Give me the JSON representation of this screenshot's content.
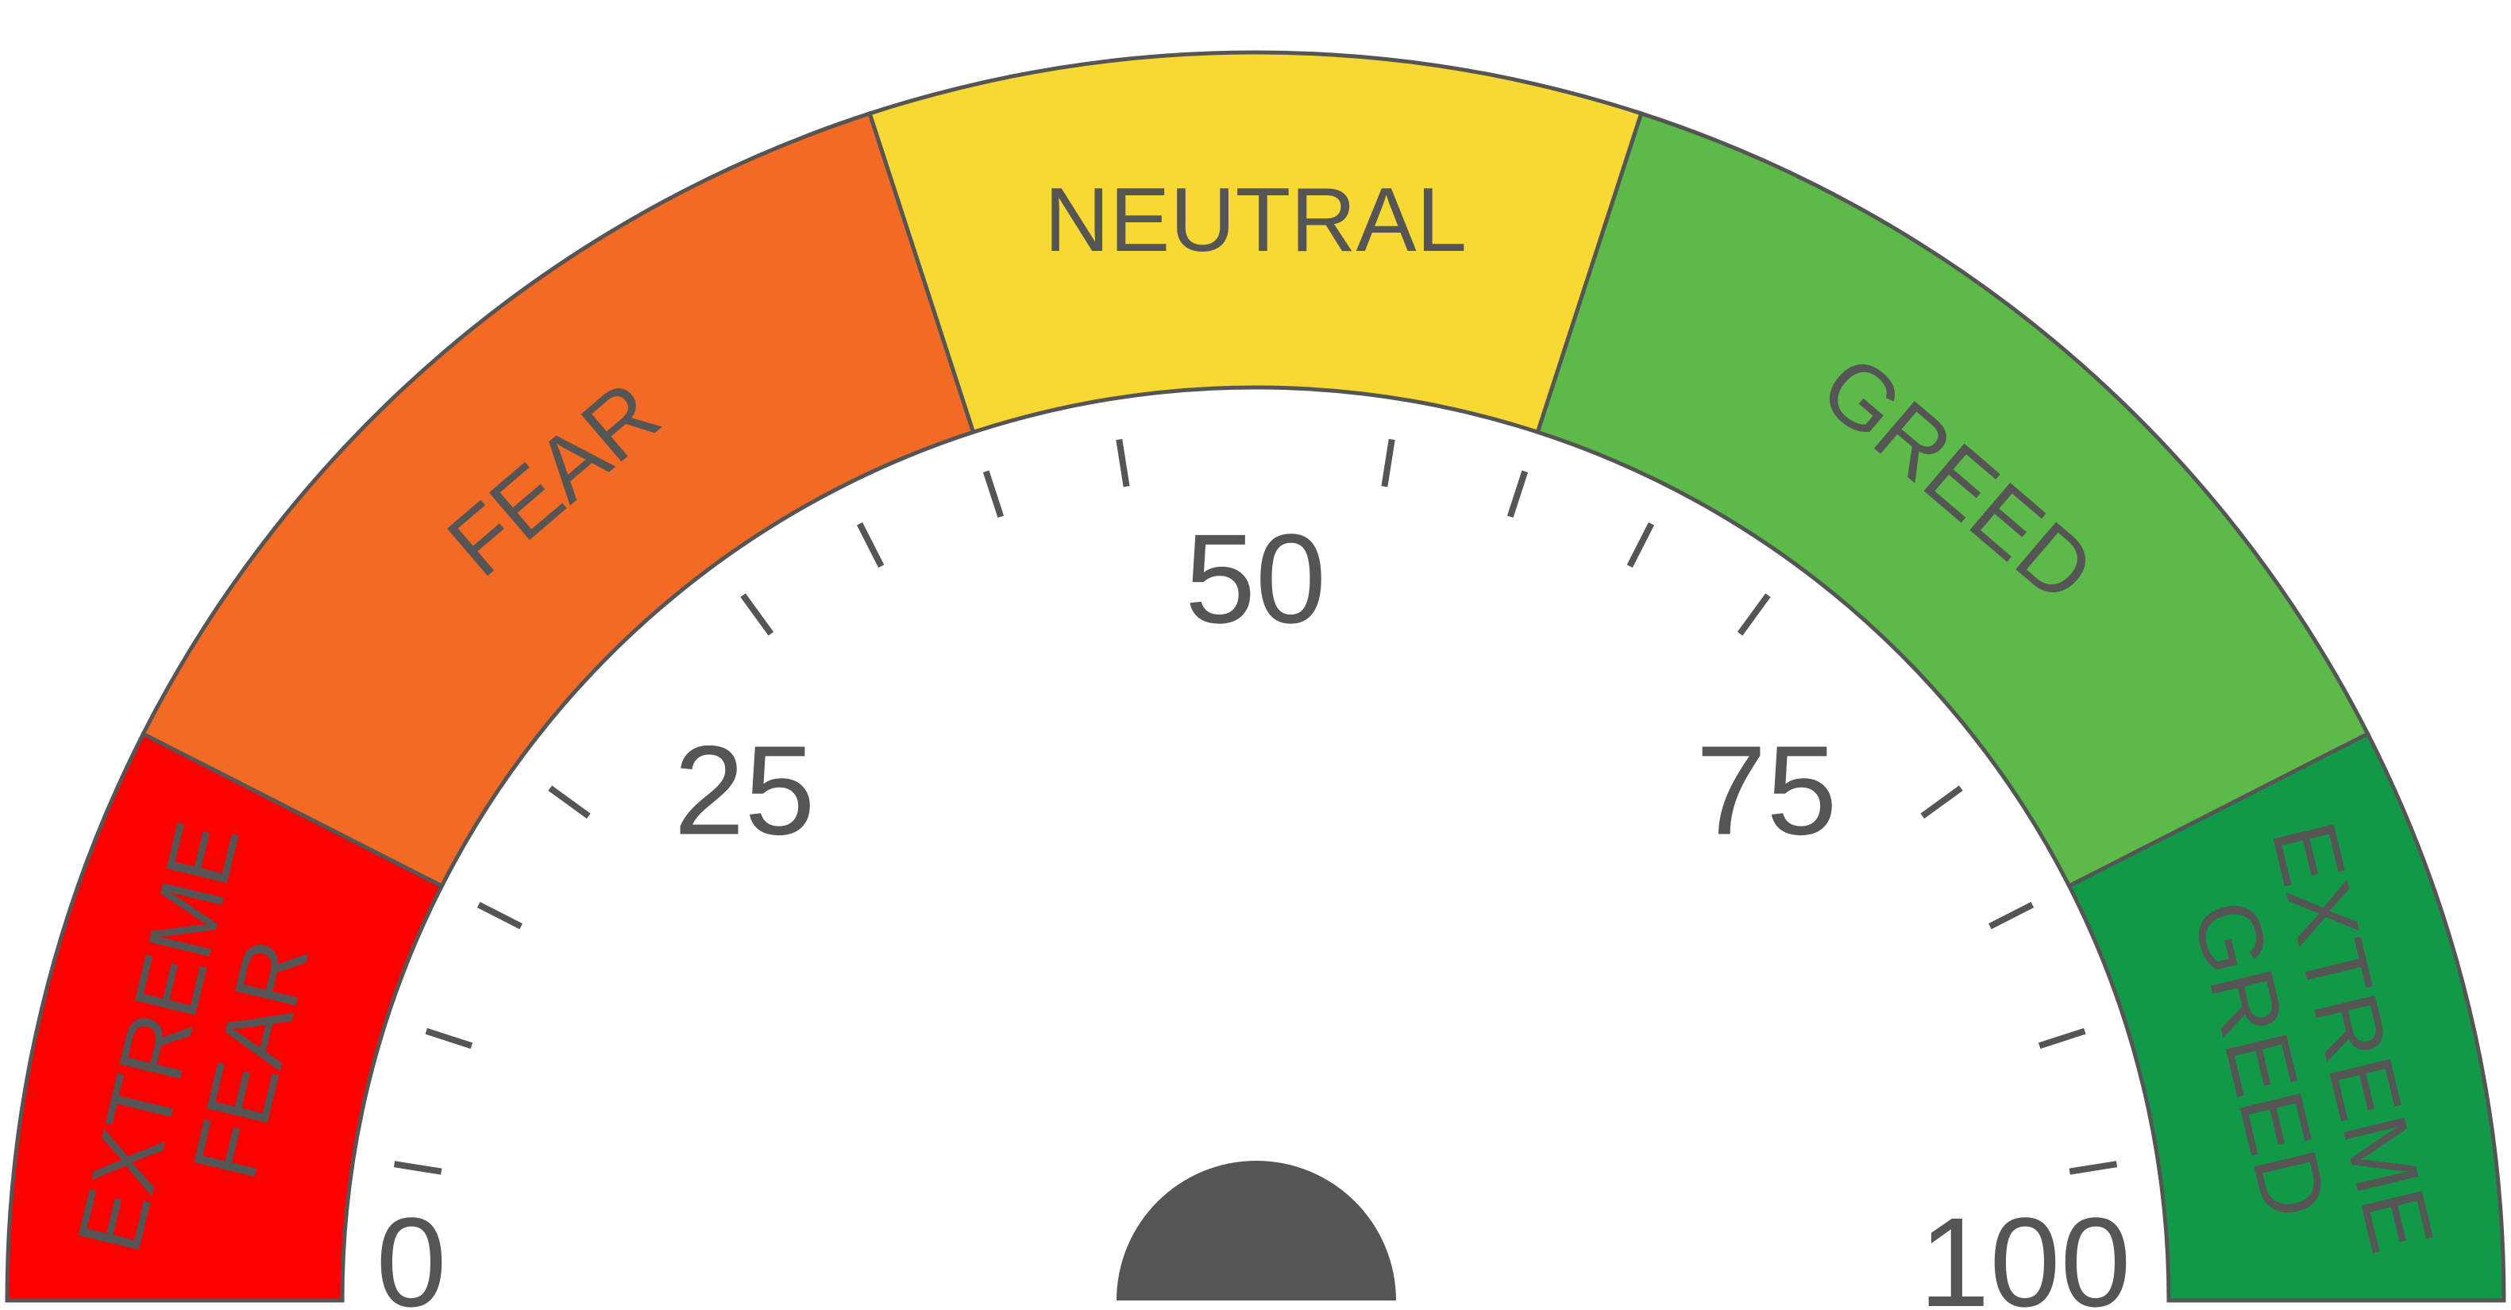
{
  "gauge": {
    "min": 0,
    "max": 100,
    "tick_count": 21,
    "scale_labels": [
      "0",
      "25",
      "50",
      "75",
      "100"
    ],
    "needle_hub_color": "#555555",
    "zones": [
      {
        "from": 0,
        "to": 15,
        "label_lines": [
          "EXTREME",
          "FEAR"
        ],
        "color": "#ff0000"
      },
      {
        "from": 15,
        "to": 40,
        "label_lines": [
          "FEAR"
        ],
        "color": "#f26a24"
      },
      {
        "from": 40,
        "to": 60,
        "label_lines": [
          "NEUTRAL"
        ],
        "color": "#f8d833"
      },
      {
        "from": 60,
        "to": 85,
        "label_lines": [
          "GREED"
        ],
        "color": "#5bba48"
      },
      {
        "from": 85,
        "to": 100,
        "label_lines": [
          "EXTREME",
          "GREED"
        ],
        "color": "#129947"
      }
    ]
  }
}
